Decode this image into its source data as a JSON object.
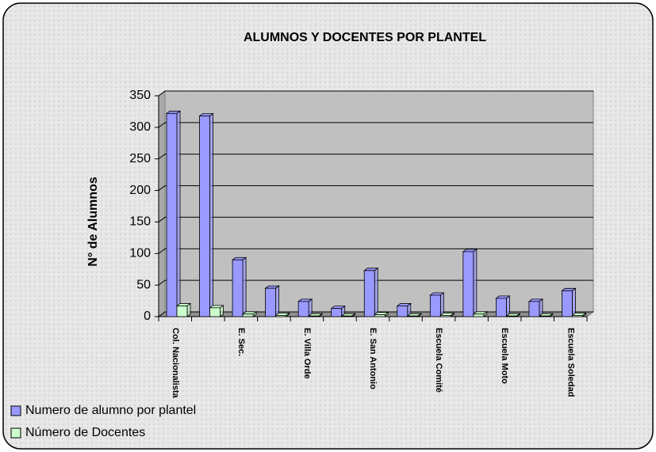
{
  "chart_data": {
    "type": "bar",
    "title": "ALUMNOS Y DOCENTES POR PLANTEL",
    "y_label": "N° de Alumnos",
    "categories": [
      "Col. Nacionalista",
      null,
      "E. Sec.",
      null,
      "E. Villa Orde",
      null,
      "E. San Antonio",
      null,
      "Escuela Comité",
      null,
      "Escuela Moto",
      null,
      "Escuela Soledad"
    ],
    "series": [
      {
        "name": "Numero de alumno por plantel",
        "color": "#9999ff",
        "values": [
          322,
          318,
          90,
          45,
          24,
          13,
          73,
          17,
          34,
          103,
          29,
          24,
          41
        ]
      },
      {
        "name": "Número de Docentes",
        "color": "#ccffcc",
        "values": [
          17,
          14,
          4,
          2,
          1,
          1,
          3,
          1,
          2,
          4,
          1,
          1,
          2
        ]
      }
    ],
    "ylim": [
      0,
      350
    ],
    "yticks": [
      0,
      50,
      100,
      150,
      200,
      250,
      300,
      350
    ],
    "grid": true
  }
}
